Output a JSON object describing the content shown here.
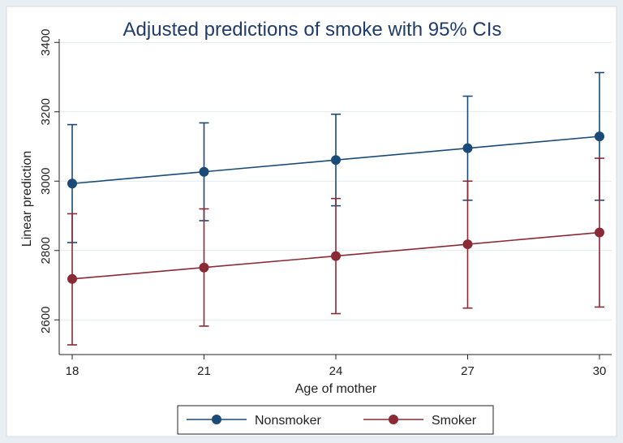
{
  "chart_data": {
    "type": "line",
    "title": "Adjusted predictions of smoke with 95% CIs",
    "xlabel": "Age of mother",
    "ylabel": "Linear prediction",
    "x": [
      18,
      21,
      24,
      27,
      30
    ],
    "xlim": [
      18,
      30
    ],
    "ylim": [
      2500,
      3410
    ],
    "yticks": [
      2600,
      2800,
      3000,
      3200,
      3400
    ],
    "grid": true,
    "legend_position": "bottom",
    "series": [
      {
        "name": "Nonsmoker",
        "color": "#1a4a78",
        "values": [
          2993,
          3027,
          3061,
          3095,
          3129
        ],
        "ci_low": [
          2823,
          2886,
          2929,
          2945,
          2945
        ],
        "ci_high": [
          3163,
          3168,
          3193,
          3245,
          3313
        ]
      },
      {
        "name": "Smoker",
        "color": "#8a2a35",
        "values": [
          2718,
          2751,
          2784,
          2818,
          2852
        ],
        "ci_low": [
          2528,
          2582,
          2618,
          2634,
          2637
        ],
        "ci_high": [
          2906,
          2920,
          2950,
          3000,
          3066
        ]
      }
    ]
  }
}
